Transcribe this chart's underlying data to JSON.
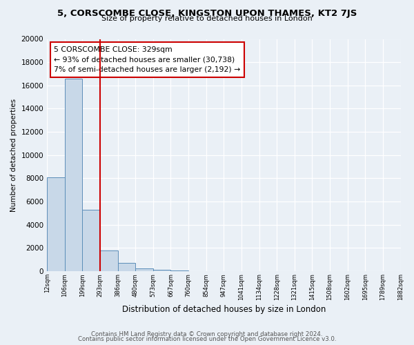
{
  "title": "5, CORSCOMBE CLOSE, KINGSTON UPON THAMES, KT2 7JS",
  "subtitle": "Size of property relative to detached houses in London",
  "xlabel": "Distribution of detached houses by size in London",
  "ylabel": "Number of detached properties",
  "bar_values": [
    8100,
    16600,
    5300,
    1800,
    700,
    270,
    150,
    80,
    30,
    0,
    0,
    0,
    0,
    0,
    0,
    0,
    0,
    0,
    0,
    0
  ],
  "bar_labels": [
    "12sqm",
    "106sqm",
    "199sqm",
    "293sqm",
    "386sqm",
    "480sqm",
    "573sqm",
    "667sqm",
    "760sqm",
    "854sqm",
    "947sqm",
    "1041sqm",
    "1134sqm",
    "1228sqm",
    "1321sqm",
    "1415sqm",
    "1508sqm",
    "1602sqm",
    "1695sqm",
    "1789sqm",
    "1882sqm"
  ],
  "bar_color": "#c8d8e8",
  "bar_edge_color": "#5b8db8",
  "red_line_x": 3.0,
  "annotation_title": "5 CORSCOMBE CLOSE: 329sqm",
  "annotation_line1": "← 93% of detached houses are smaller (30,738)",
  "annotation_line2": "7% of semi-detached houses are larger (2,192) →",
  "annotation_box_color": "#ffffff",
  "annotation_box_edge": "#cc0000",
  "ylim": [
    0,
    20000
  ],
  "yticks": [
    0,
    2000,
    4000,
    6000,
    8000,
    10000,
    12000,
    14000,
    16000,
    18000,
    20000
  ],
  "footer_line1": "Contains HM Land Registry data © Crown copyright and database right 2024.",
  "footer_line2": "Contains public sector information licensed under the Open Government Licence v3.0.",
  "background_color": "#eaf0f6",
  "grid_color": "#ffffff"
}
